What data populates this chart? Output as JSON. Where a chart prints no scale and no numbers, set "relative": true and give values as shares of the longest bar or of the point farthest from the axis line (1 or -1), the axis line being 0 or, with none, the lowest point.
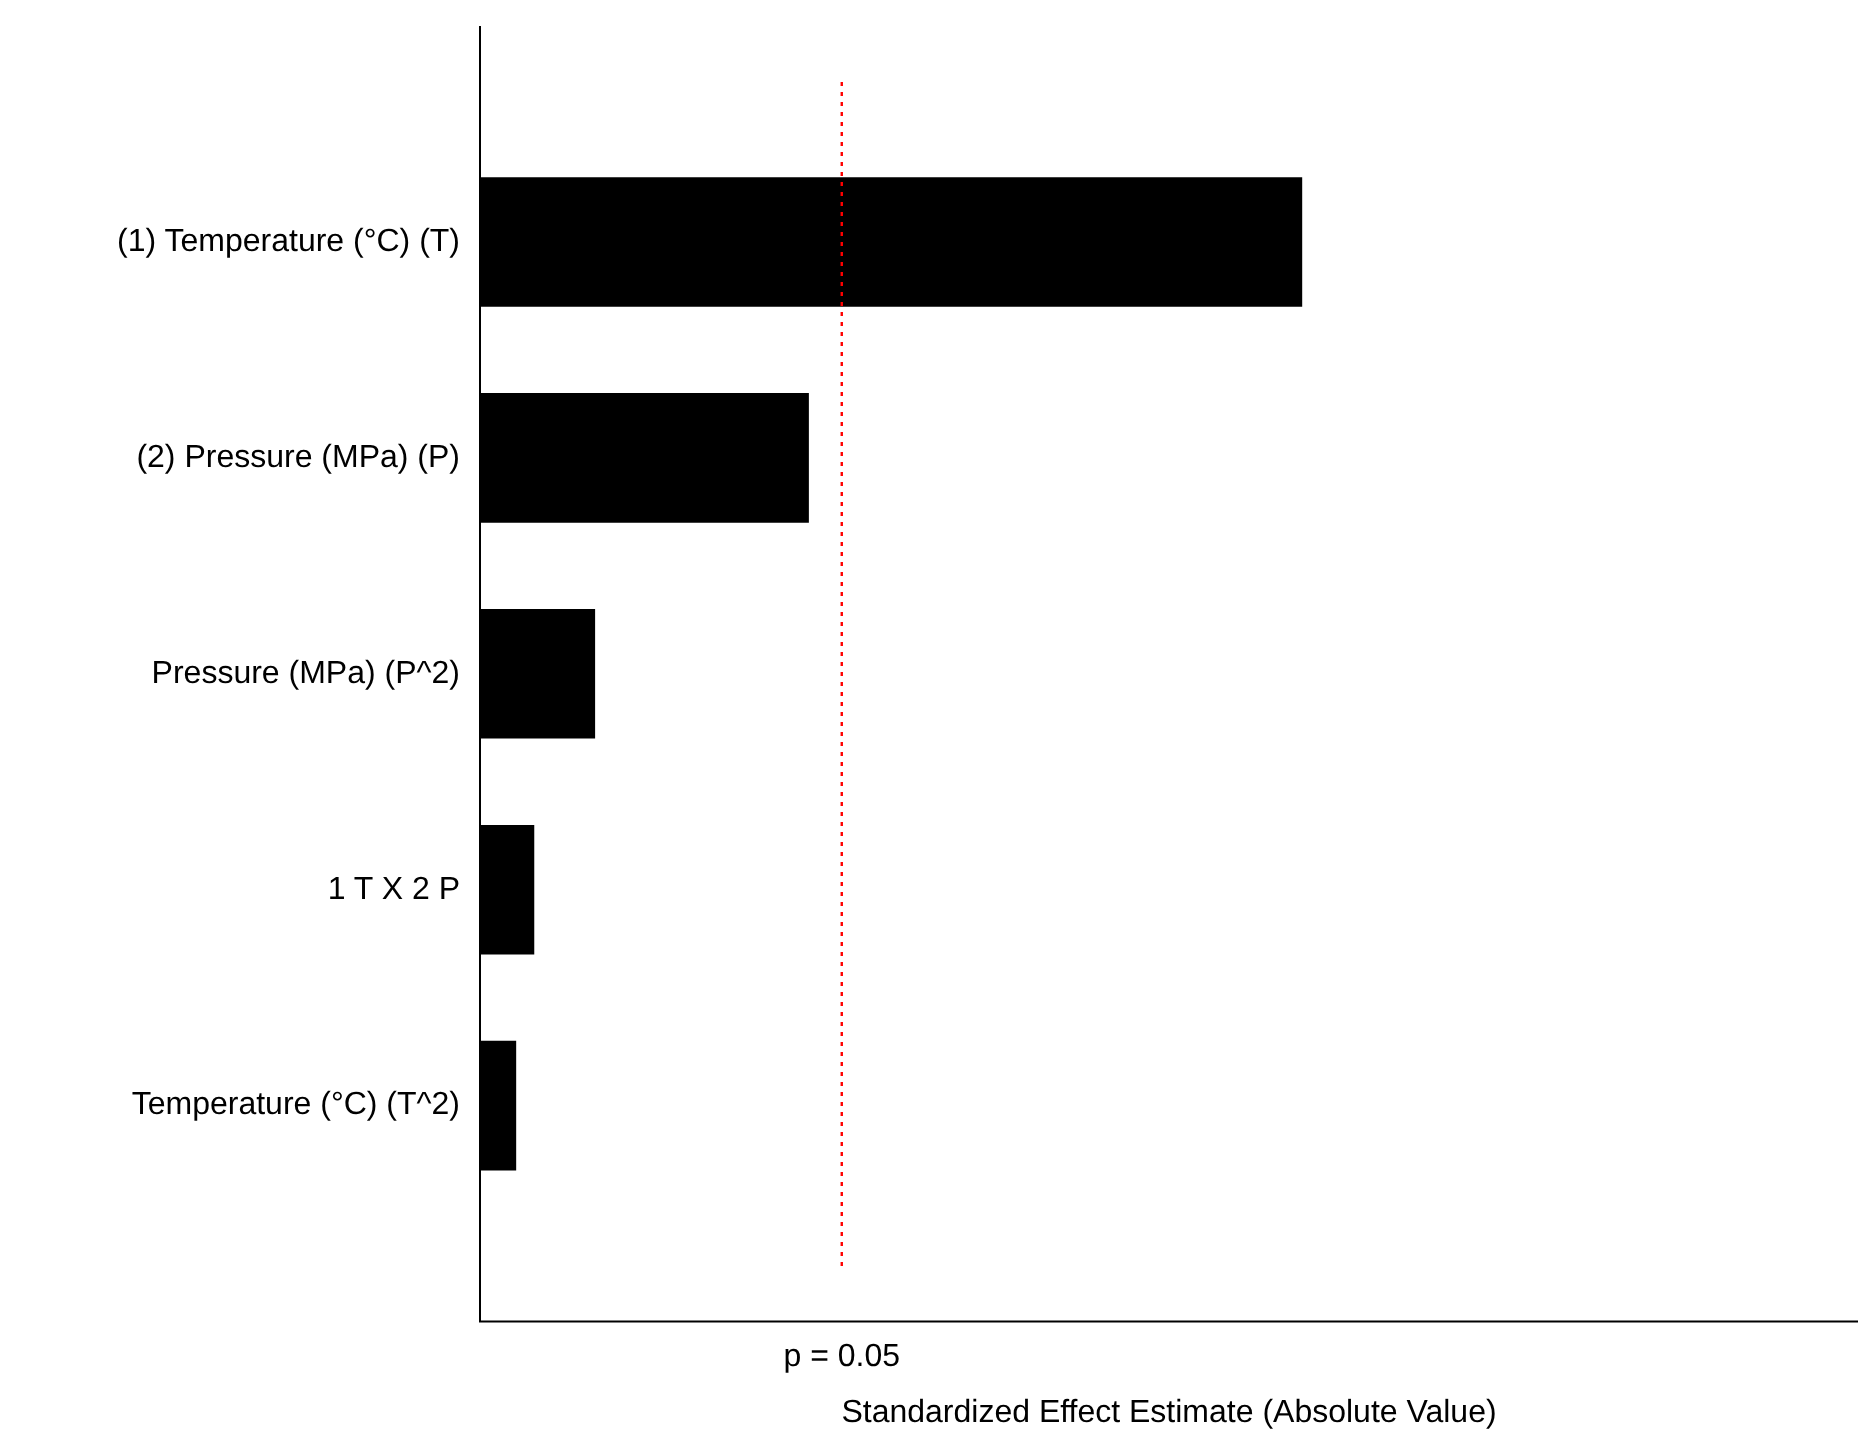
{
  "chart_data": {
    "type": "bar",
    "orientation": "horizontal",
    "relative": true,
    "xlabel": "Standardized Effect Estimate (Absolute Value)",
    "categories": [
      "(1) Temperature (°C) (T)",
      "(2) Pressure (MPa) (P)",
      "Pressure (MPa) (P^2)",
      "1 T X 2 P",
      "Temperature (°C) (T^2)"
    ],
    "values": [
      1,
      0.4,
      0.14,
      0.066,
      0.044
    ],
    "color": "#000000",
    "ref_lines": [
      {
        "axis": "x",
        "value": 0.44,
        "color": "#ff0000",
        "line_style": "dotted"
      }
    ],
    "annotations": [
      "p = 0.05"
    ],
    "grid": false,
    "legend": false
  }
}
